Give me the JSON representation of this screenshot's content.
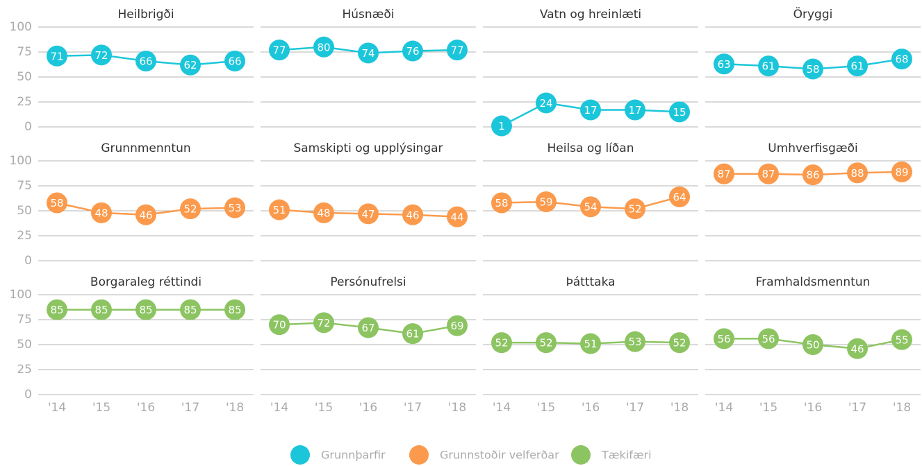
{
  "chart_data": [
    {
      "type": "line",
      "title": "Heilbrigði",
      "values": [
        71,
        72,
        66,
        62,
        66
      ],
      "color": "#1cc6da",
      "ylim": [
        0,
        100
      ],
      "yticks": [
        0,
        25,
        50,
        75,
        100
      ]
    },
    {
      "type": "line",
      "title": "Húsnæði",
      "values": [
        77,
        80,
        74,
        76,
        77
      ],
      "color": "#1cc6da",
      "ylim": [
        0,
        100
      ],
      "yticks": [
        0,
        25,
        50,
        75,
        100
      ]
    },
    {
      "type": "line",
      "title": "Vatn og hreinlæti",
      "values": [
        1,
        24,
        17,
        17,
        15
      ],
      "color": "#1cc6da",
      "ylim": [
        0,
        100
      ],
      "yticks": [
        0,
        25,
        50,
        75,
        100
      ]
    },
    {
      "type": "line",
      "title": "Öryggi",
      "values": [
        63,
        61,
        58,
        61,
        68
      ],
      "color": "#1cc6da",
      "ylim": [
        0,
        100
      ],
      "yticks": [
        0,
        25,
        50,
        75,
        100
      ]
    },
    {
      "type": "line",
      "title": "Grunnmenntun",
      "values": [
        58,
        48,
        46,
        52,
        53
      ],
      "color": "#fb9a4c",
      "ylim": [
        0,
        100
      ],
      "yticks": [
        0,
        25,
        50,
        75,
        100
      ]
    },
    {
      "type": "line",
      "title": "Samskipti og upplýsingar",
      "values": [
        51,
        48,
        47,
        46,
        44
      ],
      "color": "#fb9a4c",
      "ylim": [
        0,
        100
      ],
      "yticks": [
        0,
        25,
        50,
        75,
        100
      ]
    },
    {
      "type": "line",
      "title": "Heilsa og líðan",
      "values": [
        58,
        59,
        54,
        52,
        64
      ],
      "color": "#fb9a4c",
      "ylim": [
        0,
        100
      ],
      "yticks": [
        0,
        25,
        50,
        75,
        100
      ]
    },
    {
      "type": "line",
      "title": "Umhverfisgæði",
      "values": [
        87,
        87,
        86,
        88,
        89
      ],
      "color": "#fb9a4c",
      "ylim": [
        0,
        100
      ],
      "yticks": [
        0,
        25,
        50,
        75,
        100
      ]
    },
    {
      "type": "line",
      "title": "Borgaraleg réttindi",
      "categories": [
        "'14",
        "'15",
        "'16",
        "'17",
        "'18"
      ],
      "values": [
        85,
        85,
        85,
        85,
        85
      ],
      "color": "#8cc462",
      "ylim": [
        0,
        100
      ],
      "yticks": [
        0,
        25,
        50,
        75,
        100
      ]
    },
    {
      "type": "line",
      "title": "Persónufrelsi",
      "categories": [
        "'14",
        "'15",
        "'16",
        "'17",
        "'18"
      ],
      "values": [
        70,
        72,
        67,
        61,
        69
      ],
      "color": "#8cc462",
      "ylim": [
        0,
        100
      ],
      "yticks": [
        0,
        25,
        50,
        75,
        100
      ]
    },
    {
      "type": "line",
      "title": "Þátttaka",
      "categories": [
        "'14",
        "'15",
        "'16",
        "'17",
        "'18"
      ],
      "values": [
        52,
        52,
        51,
        53,
        52
      ],
      "color": "#8cc462",
      "ylim": [
        0,
        100
      ],
      "yticks": [
        0,
        25,
        50,
        75,
        100
      ]
    },
    {
      "type": "line",
      "title": "Framhaldsmenntun",
      "categories": [
        "'14",
        "'15",
        "'16",
        "'17",
        "'18"
      ],
      "values": [
        56,
        56,
        50,
        46,
        55
      ],
      "color": "#8cc462",
      "ylim": [
        0,
        100
      ],
      "yticks": [
        0,
        25,
        50,
        75,
        100
      ]
    }
  ],
  "legend": [
    {
      "name": "Grunnþarfir",
      "color": "#1cc6da"
    },
    {
      "name": "Grunnstoðir velferðar",
      "color": "#fb9a4c"
    },
    {
      "name": "Tækifæri",
      "color": "#8cc462"
    }
  ]
}
